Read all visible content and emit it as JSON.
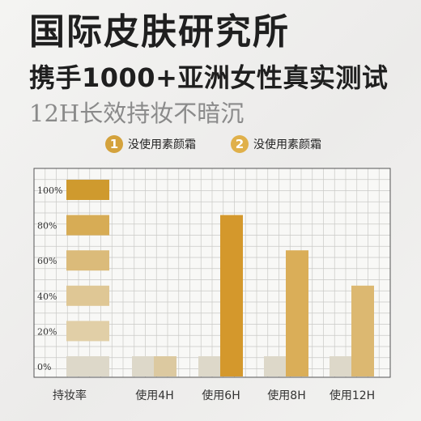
{
  "header": {
    "title": "国际皮肤研究所",
    "subtitle": "携手1000+亚洲女性真实测试",
    "tagline": "12H长效持妆不暗沉"
  },
  "legend": [
    {
      "num": "1",
      "label": "没使用素颜霜",
      "color": "#d4a23c"
    },
    {
      "num": "2",
      "label": "没使用素颜霜",
      "color": "#e0b04a"
    }
  ],
  "chart_data": {
    "type": "bar",
    "ylabel": "持妆率",
    "y_ticks": [
      "100%",
      "80%",
      "60%",
      "40%",
      "20%",
      "0%"
    ],
    "scale_colors": [
      "#cf9a2e",
      "#d7ac55",
      "#dbbb7a",
      "#dfc795",
      "#e1cfa7",
      "#ddd8c9"
    ],
    "categories": [
      "使用4H",
      "使用6H",
      "使用8H",
      "使用12H"
    ],
    "series": [
      {
        "values": [
          0,
          0,
          0,
          0
        ],
        "color": "#ddd8c9"
      },
      {
        "values": [
          0,
          80,
          60,
          40
        ],
        "colors": [
          "#dcc9a0",
          "#d4982c",
          "#daae58",
          "#dcb871"
        ]
      }
    ],
    "ylim": [
      0,
      100
    ],
    "grid": true
  }
}
